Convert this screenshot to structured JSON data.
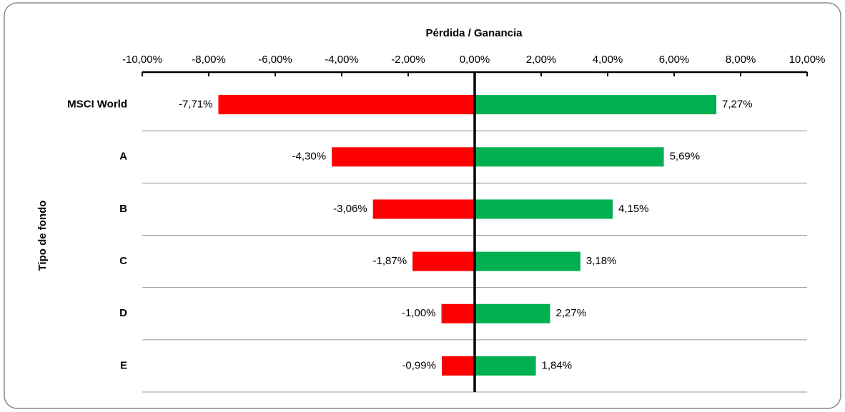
{
  "chart_data": {
    "type": "bar",
    "orientation": "horizontal",
    "x_label": "Pérdida / Ganancia",
    "y_label": "Tipo de fondo",
    "categories": [
      "MSCI World",
      "A",
      "B",
      "C",
      "D",
      "E"
    ],
    "series": [
      {
        "color": "#ff0000",
        "values": [
          -7.71,
          -4.3,
          -3.06,
          -1.87,
          -1.0,
          -0.99
        ],
        "value_labels": [
          "-7,71%",
          "-4,30%",
          "-3,06%",
          "-1,87%",
          "-1,00%",
          "-0,99%"
        ]
      },
      {
        "color": "#00b050",
        "values": [
          7.27,
          5.69,
          4.15,
          3.18,
          2.27,
          1.84
        ],
        "value_labels": [
          "7,27%",
          "5,69%",
          "4,15%",
          "3,18%",
          "2,27%",
          "1,84%"
        ]
      }
    ],
    "xlim": [
      -10,
      10
    ],
    "xticks": [
      {
        "value": -10,
        "label": "-10,00%"
      },
      {
        "value": -8,
        "label": "-8,00%"
      },
      {
        "value": -6,
        "label": "-6,00%"
      },
      {
        "value": -4,
        "label": "-4,00%"
      },
      {
        "value": -2,
        "label": "-2,00%"
      },
      {
        "value": 0,
        "label": "0,00%"
      },
      {
        "value": 2,
        "label": "2,00%"
      },
      {
        "value": 4,
        "label": "4,00%"
      },
      {
        "value": 6,
        "label": "6,00%"
      },
      {
        "value": 8,
        "label": "8,00%"
      },
      {
        "value": 10,
        "label": "10,00%"
      }
    ],
    "grid": true
  }
}
